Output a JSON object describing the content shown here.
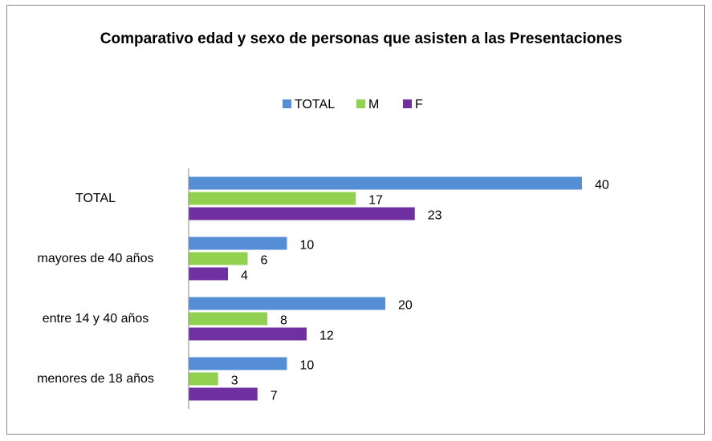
{
  "chart_data": {
    "type": "bar",
    "orientation": "horizontal",
    "title": "Comparativo edad y sexo de personas que asisten a las Presentaciones",
    "categories": [
      "TOTAL",
      "mayores de 40 años",
      "entre 14 y 40 años",
      "menores de 18 años"
    ],
    "series": [
      {
        "name": "TOTAL",
        "color": "#558ed5",
        "values": [
          40,
          10,
          20,
          10
        ]
      },
      {
        "name": "M",
        "color": "#92d050",
        "values": [
          17,
          6,
          8,
          3
        ]
      },
      {
        "name": "F",
        "color": "#7030a0",
        "values": [
          23,
          4,
          12,
          7
        ]
      }
    ],
    "xlim": [
      0,
      40
    ],
    "legend": "top"
  }
}
